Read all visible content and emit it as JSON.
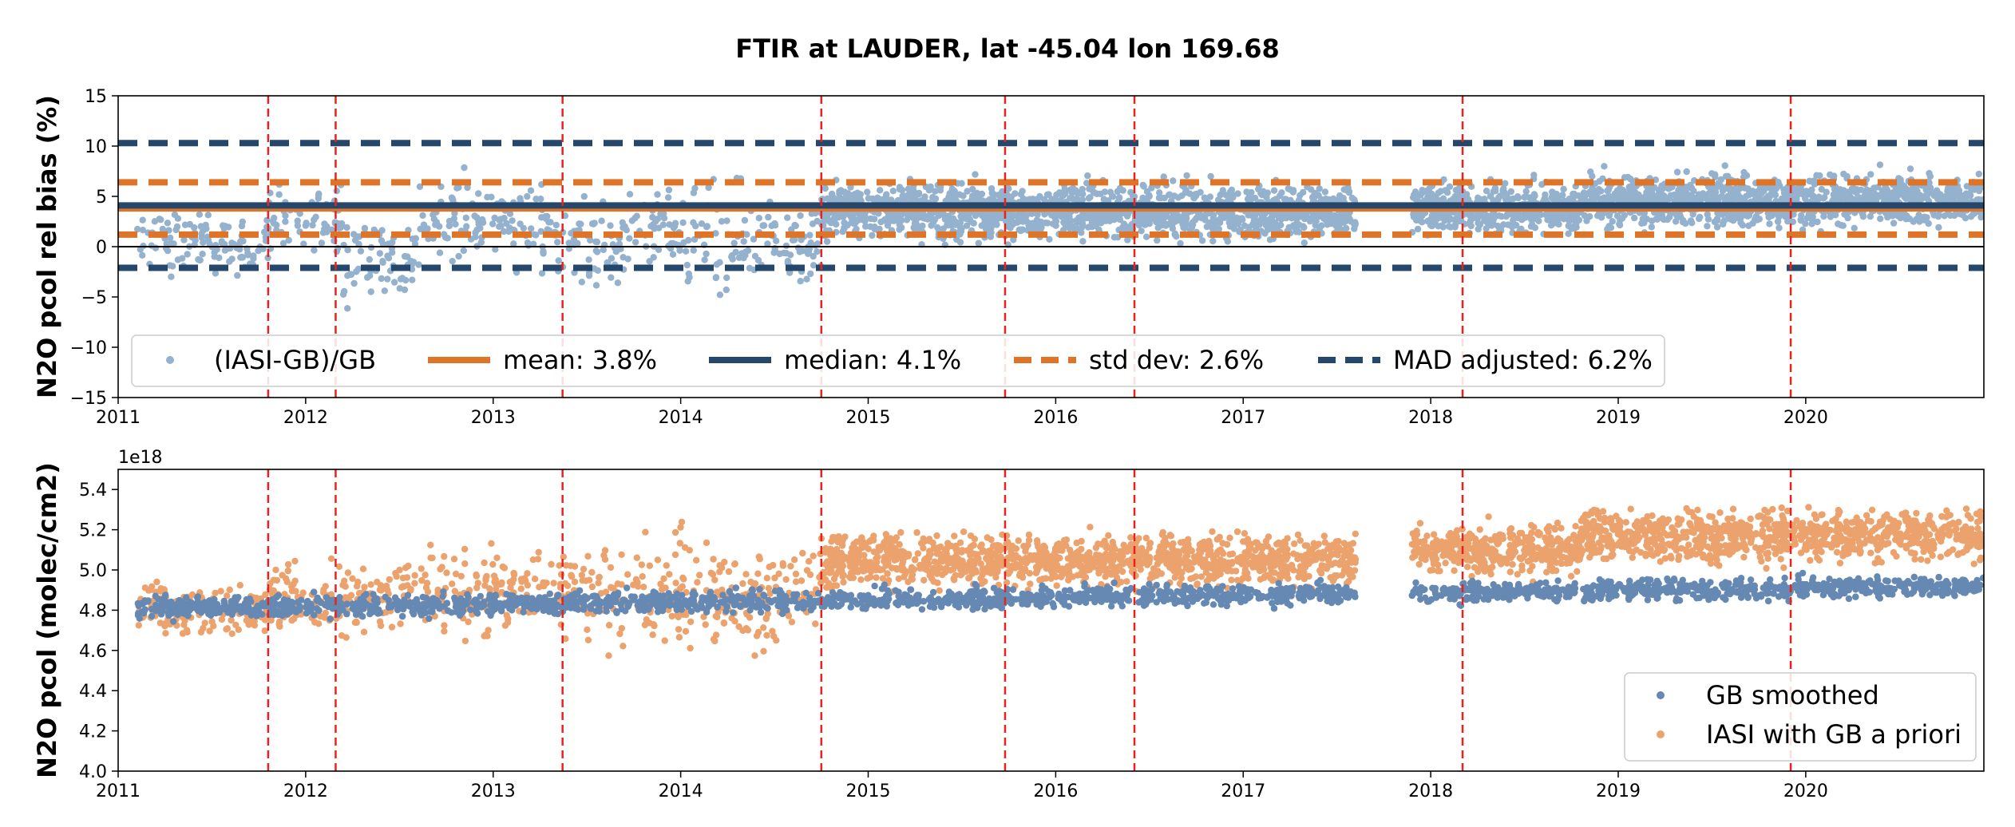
{
  "chart_data": [
    {
      "type": "scatter",
      "id": "top",
      "suptitle": "FTIR at LAUDER, lat -45.04 lon 169.68",
      "ylabel": "N2O pcol rel bias (%)",
      "xlim": [
        2011.0,
        2020.95
      ],
      "ylim": [
        -15,
        15
      ],
      "yticks": [
        15,
        10,
        5,
        0,
        -5,
        -10,
        -15
      ],
      "xticks": [
        2011,
        2012,
        2013,
        2014,
        2015,
        2016,
        2017,
        2018,
        2019,
        2020
      ],
      "xtick_labels": [
        "2011",
        "2012",
        "2013",
        "2014",
        "2015",
        "2016",
        "2017",
        "2018",
        "2019",
        "2020"
      ],
      "ytick_labels": [
        "15",
        "10",
        "5",
        "0",
        "−5",
        "−10",
        "−15"
      ],
      "zero_line": 0,
      "vlines": [
        2011.8,
        2012.16,
        2013.37,
        2014.75,
        2015.73,
        2016.42,
        2018.17,
        2019.92
      ],
      "hlines": {
        "mean": 3.8,
        "median": 4.1,
        "std_dev_bounds": [
          1.2,
          6.4
        ],
        "mad_bounds": [
          -2.1,
          10.3
        ]
      },
      "series": [
        {
          "name": "(IASI-GB)/GB",
          "color": "#94b1cd",
          "description_segments": [
            {
              "x": [
                2011.1,
                2011.8
              ],
              "center": 0.5,
              "spread": 3.0
            },
            {
              "x": [
                2011.8,
                2012.2
              ],
              "center": 3.0,
              "spread": 3.0
            },
            {
              "x": [
                2012.2,
                2012.6
              ],
              "center": -1.0,
              "spread": 4.5
            },
            {
              "x": [
                2012.6,
                2013.3
              ],
              "center": 2.5,
              "spread": 4.0
            },
            {
              "x": [
                2013.3,
                2013.7
              ],
              "center": 0.5,
              "spread": 4.0
            },
            {
              "x": [
                2013.7,
                2014.0
              ],
              "center": 1.5,
              "spread": 3.5
            },
            {
              "x": [
                2014.0,
                2014.75
              ],
              "center": 0.5,
              "spread": 5.0
            },
            {
              "x": [
                2014.75,
                2017.6
              ],
              "center": 3.5,
              "spread": 2.5
            },
            {
              "x": [
                2017.9,
                2018.8
              ],
              "center": 3.8,
              "spread": 2.3
            },
            {
              "x": [
                2018.8,
                2020.95
              ],
              "center": 4.6,
              "spread": 2.3
            }
          ]
        }
      ],
      "legend": [
        {
          "label": "(IASI-GB)/GB",
          "style": "dot",
          "color": "#94b1cd"
        },
        {
          "label": "mean: 3.8%",
          "style": "solid",
          "color": "#dd7428"
        },
        {
          "label": "median: 4.1%",
          "style": "solid",
          "color": "#24476b"
        },
        {
          "label": "std dev: 2.6%",
          "style": "dashed",
          "color": "#dd7428"
        },
        {
          "label": "MAD adjusted: 6.2%",
          "style": "dashed",
          "color": "#24476b"
        }
      ]
    },
    {
      "type": "scatter",
      "id": "bottom",
      "ylabel": "N2O pcol (molec/cm2)",
      "offset_text": "1e18",
      "xlim": [
        2011.0,
        2020.95
      ],
      "ylim": [
        4.0,
        5.5
      ],
      "yticks": [
        5.4,
        5.2,
        5.0,
        4.8,
        4.6,
        4.4,
        4.2,
        4.0
      ],
      "xticks": [
        2011,
        2012,
        2013,
        2014,
        2015,
        2016,
        2017,
        2018,
        2019,
        2020
      ],
      "xtick_labels": [
        "2011",
        "2012",
        "2013",
        "2014",
        "2015",
        "2016",
        "2017",
        "2018",
        "2019",
        "2020"
      ],
      "ytick_labels": [
        "5.4",
        "5.2",
        "5.0",
        "4.8",
        "4.6",
        "4.4",
        "4.2",
        "4.0"
      ],
      "vlines": [
        2011.8,
        2012.16,
        2013.37,
        2014.75,
        2015.73,
        2016.42,
        2018.17,
        2019.92
      ],
      "series": [
        {
          "name": "GB smoothed",
          "color": "#6689b4",
          "trend": {
            "start": [
              2011.1,
              4.81
            ],
            "end": [
              2020.95,
              4.92
            ],
            "spread": 0.05
          }
        },
        {
          "name": "IASI with GB a priori",
          "color": "#eca26c",
          "description_segments": [
            {
              "x": [
                2011.1,
                2011.8
              ],
              "center": 4.8,
              "spread": 0.12
            },
            {
              "x": [
                2011.8,
                2012.5
              ],
              "center": 4.85,
              "spread": 0.18
            },
            {
              "x": [
                2012.5,
                2013.5
              ],
              "center": 4.9,
              "spread": 0.2
            },
            {
              "x": [
                2013.5,
                2014.75
              ],
              "center": 4.88,
              "spread": 0.25
            },
            {
              "x": [
                2014.75,
                2017.6
              ],
              "center": 5.05,
              "spread": 0.12
            },
            {
              "x": [
                2017.9,
                2018.8
              ],
              "center": 5.1,
              "spread": 0.12
            },
            {
              "x": [
                2018.8,
                2020.95
              ],
              "center": 5.17,
              "spread": 0.12
            }
          ]
        }
      ],
      "legend": [
        {
          "label": "GB smoothed",
          "style": "dot",
          "color": "#6689b4"
        },
        {
          "label": "IASI with GB a priori",
          "style": "dot",
          "color": "#eca26c"
        }
      ]
    }
  ]
}
